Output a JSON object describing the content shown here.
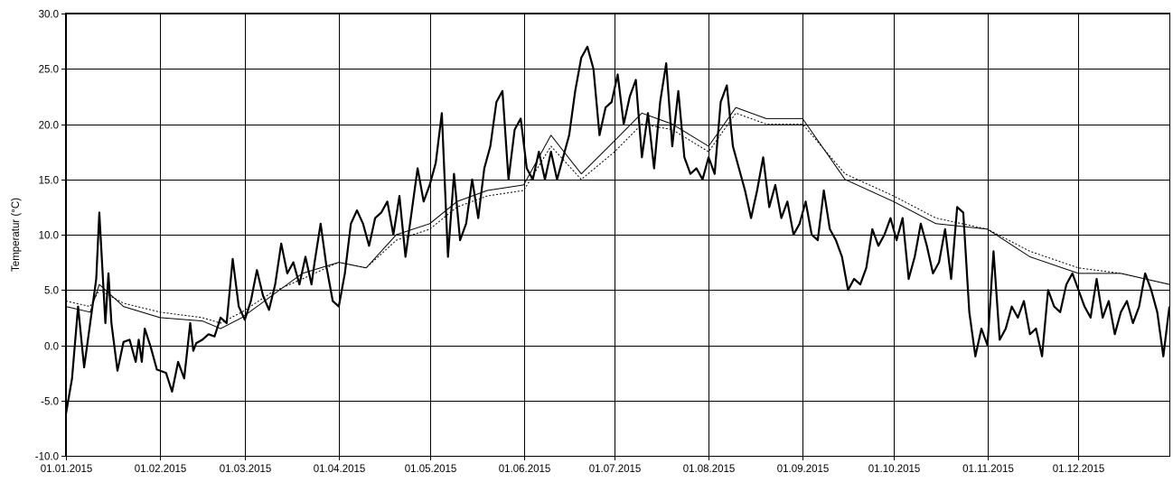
{
  "chart_data": {
    "type": "line",
    "title": "",
    "xlabel": "",
    "ylabel": "Temperatur (°C)",
    "ylim": [
      -10,
      30
    ],
    "xlim": [
      "01.01.2015",
      "31.12.2015"
    ],
    "grid": true,
    "legend": "none",
    "x_tick_labels": [
      "01.01.2015",
      "01.02.2015",
      "01.03.2015",
      "01.04.2015",
      "01.05.2015",
      "01.06.2015",
      "01.07.2015",
      "01.08.2015",
      "01.09.2015",
      "01.10.2015",
      "01.11.2015",
      "01.12.2015"
    ],
    "y_tick_labels": [
      "-10.0",
      "-5.0",
      "0.0",
      "5.0",
      "10.0",
      "15.0",
      "20.0",
      "25.0",
      "30.0"
    ],
    "y_ticks": [
      -10,
      -5,
      0,
      5,
      10,
      15,
      20,
      25,
      30
    ],
    "series": [
      {
        "style": "thick-solid",
        "color": "#000000",
        "points": [
          [
            "01.01.2015",
            -6.2
          ],
          [
            "03.01.2015",
            -3.0
          ],
          [
            "05.01.2015",
            3.5
          ],
          [
            "07.01.2015",
            -2.0
          ],
          [
            "09.01.2015",
            2.0
          ],
          [
            "11.01.2015",
            6.0
          ],
          [
            "12.01.2015",
            12.0
          ],
          [
            "14.01.2015",
            2.0
          ],
          [
            "15.01.2015",
            6.5
          ],
          [
            "16.01.2015",
            2.0
          ],
          [
            "18.01.2015",
            -2.3
          ],
          [
            "20.01.2015",
            0.3
          ],
          [
            "22.01.2015",
            0.5
          ],
          [
            "24.01.2015",
            -1.5
          ],
          [
            "25.01.2015",
            0.5
          ],
          [
            "26.01.2015",
            -1.5
          ],
          [
            "27.01.2015",
            1.5
          ],
          [
            "29.01.2015",
            -0.2
          ],
          [
            "31.01.2015",
            -2.2
          ],
          [
            "03.02.2015",
            -2.5
          ],
          [
            "05.02.2015",
            -4.2
          ],
          [
            "07.02.2015",
            -1.5
          ],
          [
            "09.02.2015",
            -3.0
          ],
          [
            "11.02.2015",
            2.0
          ],
          [
            "12.02.2015",
            -0.5
          ],
          [
            "13.02.2015",
            0.2
          ],
          [
            "15.02.2015",
            0.5
          ],
          [
            "17.02.2015",
            1.0
          ],
          [
            "19.02.2015",
            0.8
          ],
          [
            "21.02.2015",
            2.5
          ],
          [
            "23.02.2015",
            2.0
          ],
          [
            "25.02.2015",
            7.8
          ],
          [
            "27.02.2015",
            3.5
          ],
          [
            "01.03.2015",
            2.3
          ],
          [
            "03.03.2015",
            4.0
          ],
          [
            "05.03.2015",
            6.8
          ],
          [
            "07.03.2015",
            4.5
          ],
          [
            "09.03.2015",
            3.2
          ],
          [
            "11.03.2015",
            5.5
          ],
          [
            "13.03.2015",
            9.2
          ],
          [
            "15.03.2015",
            6.5
          ],
          [
            "17.03.2015",
            7.5
          ],
          [
            "19.03.2015",
            5.5
          ],
          [
            "21.03.2015",
            8.0
          ],
          [
            "23.03.2015",
            5.5
          ],
          [
            "24.03.2015",
            7.5
          ],
          [
            "26.03.2015",
            11.0
          ],
          [
            "28.03.2015",
            7.0
          ],
          [
            "30.03.2015",
            4.0
          ],
          [
            "01.04.2015",
            3.5
          ],
          [
            "03.04.2015",
            6.5
          ],
          [
            "05.04.2015",
            11.0
          ],
          [
            "07.04.2015",
            12.2
          ],
          [
            "09.04.2015",
            11.0
          ],
          [
            "11.04.2015",
            9.0
          ],
          [
            "13.04.2015",
            11.5
          ],
          [
            "15.04.2015",
            12.0
          ],
          [
            "17.04.2015",
            13.0
          ],
          [
            "19.04.2015",
            10.0
          ],
          [
            "21.04.2015",
            13.5
          ],
          [
            "23.04.2015",
            8.0
          ],
          [
            "25.04.2015",
            12.0
          ],
          [
            "27.04.2015",
            16.0
          ],
          [
            "29.04.2015",
            13.0
          ],
          [
            "01.05.2015",
            14.5
          ],
          [
            "03.05.2015",
            16.5
          ],
          [
            "05.05.2015",
            21.0
          ],
          [
            "07.05.2015",
            8.0
          ],
          [
            "09.05.2015",
            15.5
          ],
          [
            "11.05.2015",
            9.5
          ],
          [
            "13.05.2015",
            11.0
          ],
          [
            "15.05.2015",
            15.0
          ],
          [
            "17.05.2015",
            11.5
          ],
          [
            "19.05.2015",
            16.0
          ],
          [
            "21.05.2015",
            18.0
          ],
          [
            "23.05.2015",
            22.0
          ],
          [
            "25.05.2015",
            23.0
          ],
          [
            "27.05.2015",
            15.0
          ],
          [
            "29.05.2015",
            19.5
          ],
          [
            "31.05.2015",
            20.5
          ],
          [
            "02.06.2015",
            16.0
          ],
          [
            "04.06.2015",
            15.0
          ],
          [
            "06.06.2015",
            17.5
          ],
          [
            "08.06.2015",
            15.0
          ],
          [
            "10.06.2015",
            17.5
          ],
          [
            "12.06.2015",
            15.0
          ],
          [
            "14.06.2015",
            17.0
          ],
          [
            "16.06.2015",
            19.0
          ],
          [
            "18.06.2015",
            23.0
          ],
          [
            "20.06.2015",
            26.0
          ],
          [
            "22.06.2015",
            27.0
          ],
          [
            "24.06.2015",
            25.0
          ],
          [
            "26.06.2015",
            19.0
          ],
          [
            "28.06.2015",
            21.5
          ],
          [
            "30.06.2015",
            22.0
          ],
          [
            "02.07.2015",
            24.5
          ],
          [
            "04.07.2015",
            20.0
          ],
          [
            "06.07.2015",
            22.5
          ],
          [
            "08.07.2015",
            24.0
          ],
          [
            "10.07.2015",
            17.0
          ],
          [
            "12.07.2015",
            21.0
          ],
          [
            "14.07.2015",
            16.0
          ],
          [
            "16.07.2015",
            22.0
          ],
          [
            "18.07.2015",
            25.5
          ],
          [
            "20.07.2015",
            18.0
          ],
          [
            "22.07.2015",
            23.0
          ],
          [
            "24.07.2015",
            17.0
          ],
          [
            "26.07.2015",
            15.5
          ],
          [
            "28.07.2015",
            16.0
          ],
          [
            "30.07.2015",
            15.0
          ],
          [
            "01.08.2015",
            17.0
          ],
          [
            "03.08.2015",
            15.5
          ],
          [
            "05.08.2015",
            22.0
          ],
          [
            "07.08.2015",
            23.5
          ],
          [
            "09.08.2015",
            18.0
          ],
          [
            "11.08.2015",
            16.0
          ],
          [
            "13.08.2015",
            14.0
          ],
          [
            "15.08.2015",
            11.5
          ],
          [
            "17.08.2015",
            14.0
          ],
          [
            "19.08.2015",
            17.0
          ],
          [
            "21.08.2015",
            12.5
          ],
          [
            "23.08.2015",
            14.5
          ],
          [
            "25.08.2015",
            11.5
          ],
          [
            "27.08.2015",
            13.0
          ],
          [
            "29.08.2015",
            10.0
          ],
          [
            "31.08.2015",
            11.0
          ],
          [
            "02.09.2015",
            13.0
          ],
          [
            "04.09.2015",
            10.0
          ],
          [
            "06.09.2015",
            9.5
          ],
          [
            "08.09.2015",
            14.0
          ],
          [
            "10.09.2015",
            10.5
          ],
          [
            "12.09.2015",
            9.5
          ],
          [
            "14.09.2015",
            8.0
          ],
          [
            "16.09.2015",
            5.0
          ],
          [
            "18.09.2015",
            6.0
          ],
          [
            "20.09.2015",
            5.5
          ],
          [
            "22.09.2015",
            7.0
          ],
          [
            "24.09.2015",
            10.5
          ],
          [
            "26.09.2015",
            9.0
          ],
          [
            "28.09.2015",
            10.0
          ],
          [
            "30.09.2015",
            11.5
          ],
          [
            "02.10.2015",
            9.5
          ],
          [
            "04.10.2015",
            11.5
          ],
          [
            "06.10.2015",
            6.0
          ],
          [
            "08.10.2015",
            8.0
          ],
          [
            "10.10.2015",
            11.0
          ],
          [
            "12.10.2015",
            9.0
          ],
          [
            "14.10.2015",
            6.5
          ],
          [
            "16.10.2015",
            7.5
          ],
          [
            "18.10.2015",
            10.5
          ],
          [
            "20.10.2015",
            6.0
          ],
          [
            "22.10.2015",
            12.5
          ],
          [
            "24.10.2015",
            12.0
          ],
          [
            "26.10.2015",
            3.0
          ],
          [
            "28.10.2015",
            -1.0
          ],
          [
            "30.10.2015",
            1.5
          ],
          [
            "01.11.2015",
            0.0
          ],
          [
            "03.11.2015",
            8.5
          ],
          [
            "05.11.2015",
            0.5
          ],
          [
            "07.11.2015",
            1.5
          ],
          [
            "09.11.2015",
            3.5
          ],
          [
            "11.11.2015",
            2.5
          ],
          [
            "13.11.2015",
            4.0
          ],
          [
            "15.11.2015",
            1.0
          ],
          [
            "17.11.2015",
            1.5
          ],
          [
            "19.11.2015",
            -1.0
          ],
          [
            "21.11.2015",
            5.0
          ],
          [
            "23.11.2015",
            3.5
          ],
          [
            "25.11.2015",
            3.0
          ],
          [
            "27.11.2015",
            5.5
          ],
          [
            "29.11.2015",
            6.5
          ],
          [
            "01.12.2015",
            5.0
          ],
          [
            "03.12.2015",
            3.5
          ],
          [
            "05.12.2015",
            2.5
          ],
          [
            "07.12.2015",
            6.0
          ],
          [
            "09.12.2015",
            2.5
          ],
          [
            "11.12.2015",
            4.0
          ],
          [
            "13.12.2015",
            1.0
          ],
          [
            "15.12.2015",
            3.0
          ],
          [
            "17.12.2015",
            4.0
          ],
          [
            "19.12.2015",
            2.0
          ],
          [
            "21.12.2015",
            3.5
          ],
          [
            "23.12.2015",
            6.5
          ],
          [
            "25.12.2015",
            5.0
          ],
          [
            "27.12.2015",
            3.0
          ],
          [
            "29.12.2015",
            -1.0
          ],
          [
            "31.12.2015",
            3.5
          ]
        ]
      },
      {
        "style": "thin-solid",
        "color": "#000000",
        "points": [
          [
            "01.01.2015",
            3.5
          ],
          [
            "09.01.2015",
            3.0
          ],
          [
            "12.01.2015",
            5.5
          ],
          [
            "20.01.2015",
            3.5
          ],
          [
            "01.02.2015",
            2.5
          ],
          [
            "15.02.2015",
            2.2
          ],
          [
            "21.02.2015",
            1.5
          ],
          [
            "28.02.2015",
            2.5
          ],
          [
            "10.03.2015",
            4.5
          ],
          [
            "20.03.2015",
            6.5
          ],
          [
            "01.04.2015",
            7.5
          ],
          [
            "10.04.2015",
            7.0
          ],
          [
            "20.04.2015",
            10.0
          ],
          [
            "01.05.2015",
            11.0
          ],
          [
            "10.05.2015",
            13.0
          ],
          [
            "20.05.2015",
            14.0
          ],
          [
            "01.06.2015",
            14.5
          ],
          [
            "10.06.2015",
            19.0
          ],
          [
            "20.06.2015",
            15.5
          ],
          [
            "01.07.2015",
            18.5
          ],
          [
            "10.07.2015",
            21.0
          ],
          [
            "20.07.2015",
            20.0
          ],
          [
            "01.08.2015",
            18.0
          ],
          [
            "10.08.2015",
            21.5
          ],
          [
            "20.08.2015",
            20.5
          ],
          [
            "01.09.2015",
            20.5
          ],
          [
            "15.09.2015",
            15.0
          ],
          [
            "01.10.2015",
            13.0
          ],
          [
            "15.10.2015",
            11.0
          ],
          [
            "01.11.2015",
            10.5
          ],
          [
            "15.11.2015",
            8.0
          ],
          [
            "01.12.2015",
            6.5
          ],
          [
            "15.12.2015",
            6.5
          ],
          [
            "31.12.2015",
            5.5
          ]
        ]
      },
      {
        "style": "thin-dotted",
        "color": "#000000",
        "points": [
          [
            "01.01.2015",
            4.0
          ],
          [
            "09.01.2015",
            3.5
          ],
          [
            "12.01.2015",
            5.0
          ],
          [
            "20.01.2015",
            3.8
          ],
          [
            "01.02.2015",
            3.0
          ],
          [
            "15.02.2015",
            2.5
          ],
          [
            "21.02.2015",
            2.0
          ],
          [
            "28.02.2015",
            3.0
          ],
          [
            "10.03.2015",
            4.8
          ],
          [
            "20.03.2015",
            6.0
          ],
          [
            "01.04.2015",
            7.5
          ],
          [
            "10.04.2015",
            7.0
          ],
          [
            "20.04.2015",
            9.5
          ],
          [
            "01.05.2015",
            10.5
          ],
          [
            "10.05.2015",
            12.5
          ],
          [
            "20.05.2015",
            13.5
          ],
          [
            "01.06.2015",
            14.0
          ],
          [
            "10.06.2015",
            18.0
          ],
          [
            "20.06.2015",
            15.0
          ],
          [
            "01.07.2015",
            17.5
          ],
          [
            "10.07.2015",
            20.0
          ],
          [
            "20.07.2015",
            19.5
          ],
          [
            "01.08.2015",
            17.5
          ],
          [
            "10.08.2015",
            21.0
          ],
          [
            "20.08.2015",
            20.0
          ],
          [
            "01.09.2015",
            20.0
          ],
          [
            "15.09.2015",
            15.5
          ],
          [
            "01.10.2015",
            13.5
          ],
          [
            "15.10.2015",
            11.5
          ],
          [
            "01.11.2015",
            10.5
          ],
          [
            "15.11.2015",
            8.5
          ],
          [
            "01.12.2015",
            7.0
          ],
          [
            "15.12.2015",
            6.5
          ],
          [
            "31.12.2015",
            5.5
          ]
        ]
      }
    ]
  }
}
